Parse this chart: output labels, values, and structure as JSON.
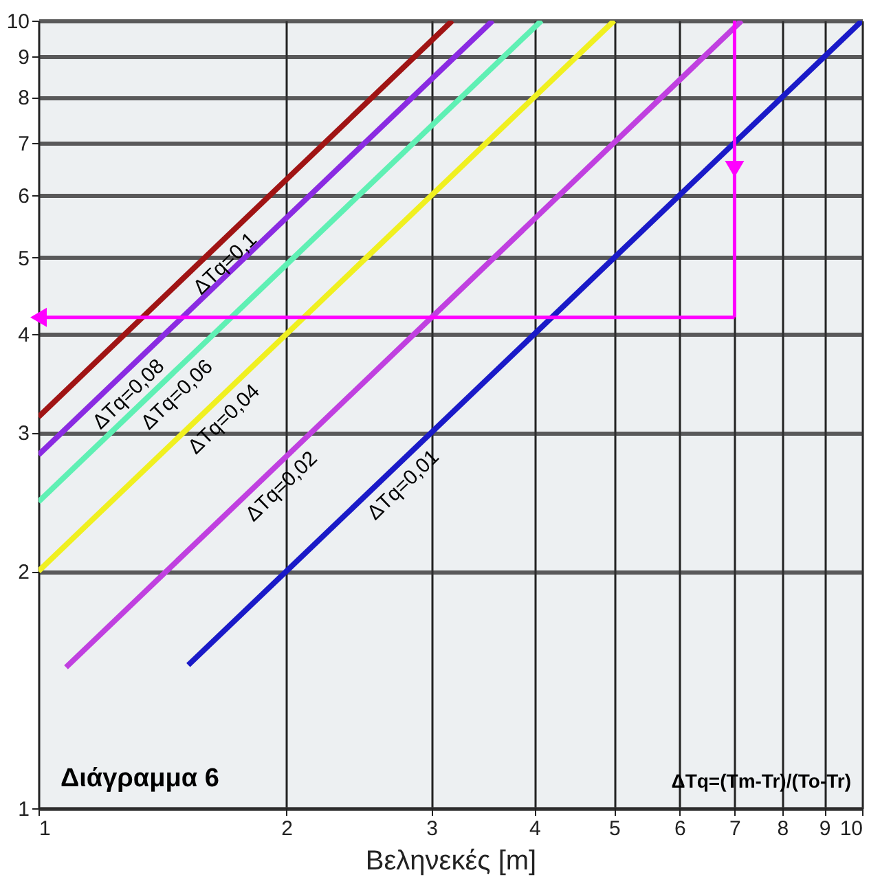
{
  "chart_data": {
    "type": "line",
    "xlabel": "Βεληνεκές [m]",
    "log": "xy",
    "grid": true,
    "legend": false,
    "marker": "none",
    "xlim": [
      1,
      10
    ],
    "ylim": [
      1,
      10
    ],
    "xticks": [
      1,
      2,
      3,
      4,
      5,
      6,
      7,
      8,
      9,
      10
    ],
    "yticks": [
      1,
      2,
      3,
      4,
      5,
      6,
      7,
      8,
      9,
      10
    ],
    "series": [
      {
        "name": "ΔTq=0,1",
        "color": "#a01414",
        "x": [
          1,
          3.18
        ],
        "values": [
          3.14,
          10
        ]
      },
      {
        "name": "ΔTq=0,08",
        "color": "#8a2be2",
        "x": [
          1,
          3.56
        ],
        "values": [
          2.81,
          10
        ]
      },
      {
        "name": "ΔTq=0,06",
        "color": "#5ff0b4",
        "x": [
          1,
          4.08
        ],
        "values": [
          2.45,
          10
        ]
      },
      {
        "name": "ΔTq=0,04",
        "color": "#f0f020",
        "x": [
          1,
          5
        ],
        "values": [
          2,
          10
        ]
      },
      {
        "name": "ΔTq=0,02",
        "color": "#c040e0",
        "x": [
          1.08,
          7.14
        ],
        "values": [
          1.51,
          10
        ]
      },
      {
        "name": "ΔTq=0,01",
        "color": "#1a1ac8",
        "x": [
          1.52,
          10
        ],
        "values": [
          1.52,
          10
        ]
      }
    ],
    "ref_lines": [
      {
        "axis": "x",
        "value": 7,
        "color": "#ff00ff"
      },
      {
        "axis": "y",
        "value": 4.2,
        "color": "#ff00ff"
      }
    ],
    "annotations": [
      "Διάγραμμα 6",
      "ΔTq=(Tm-Tr)/(To-Tr)"
    ]
  }
}
